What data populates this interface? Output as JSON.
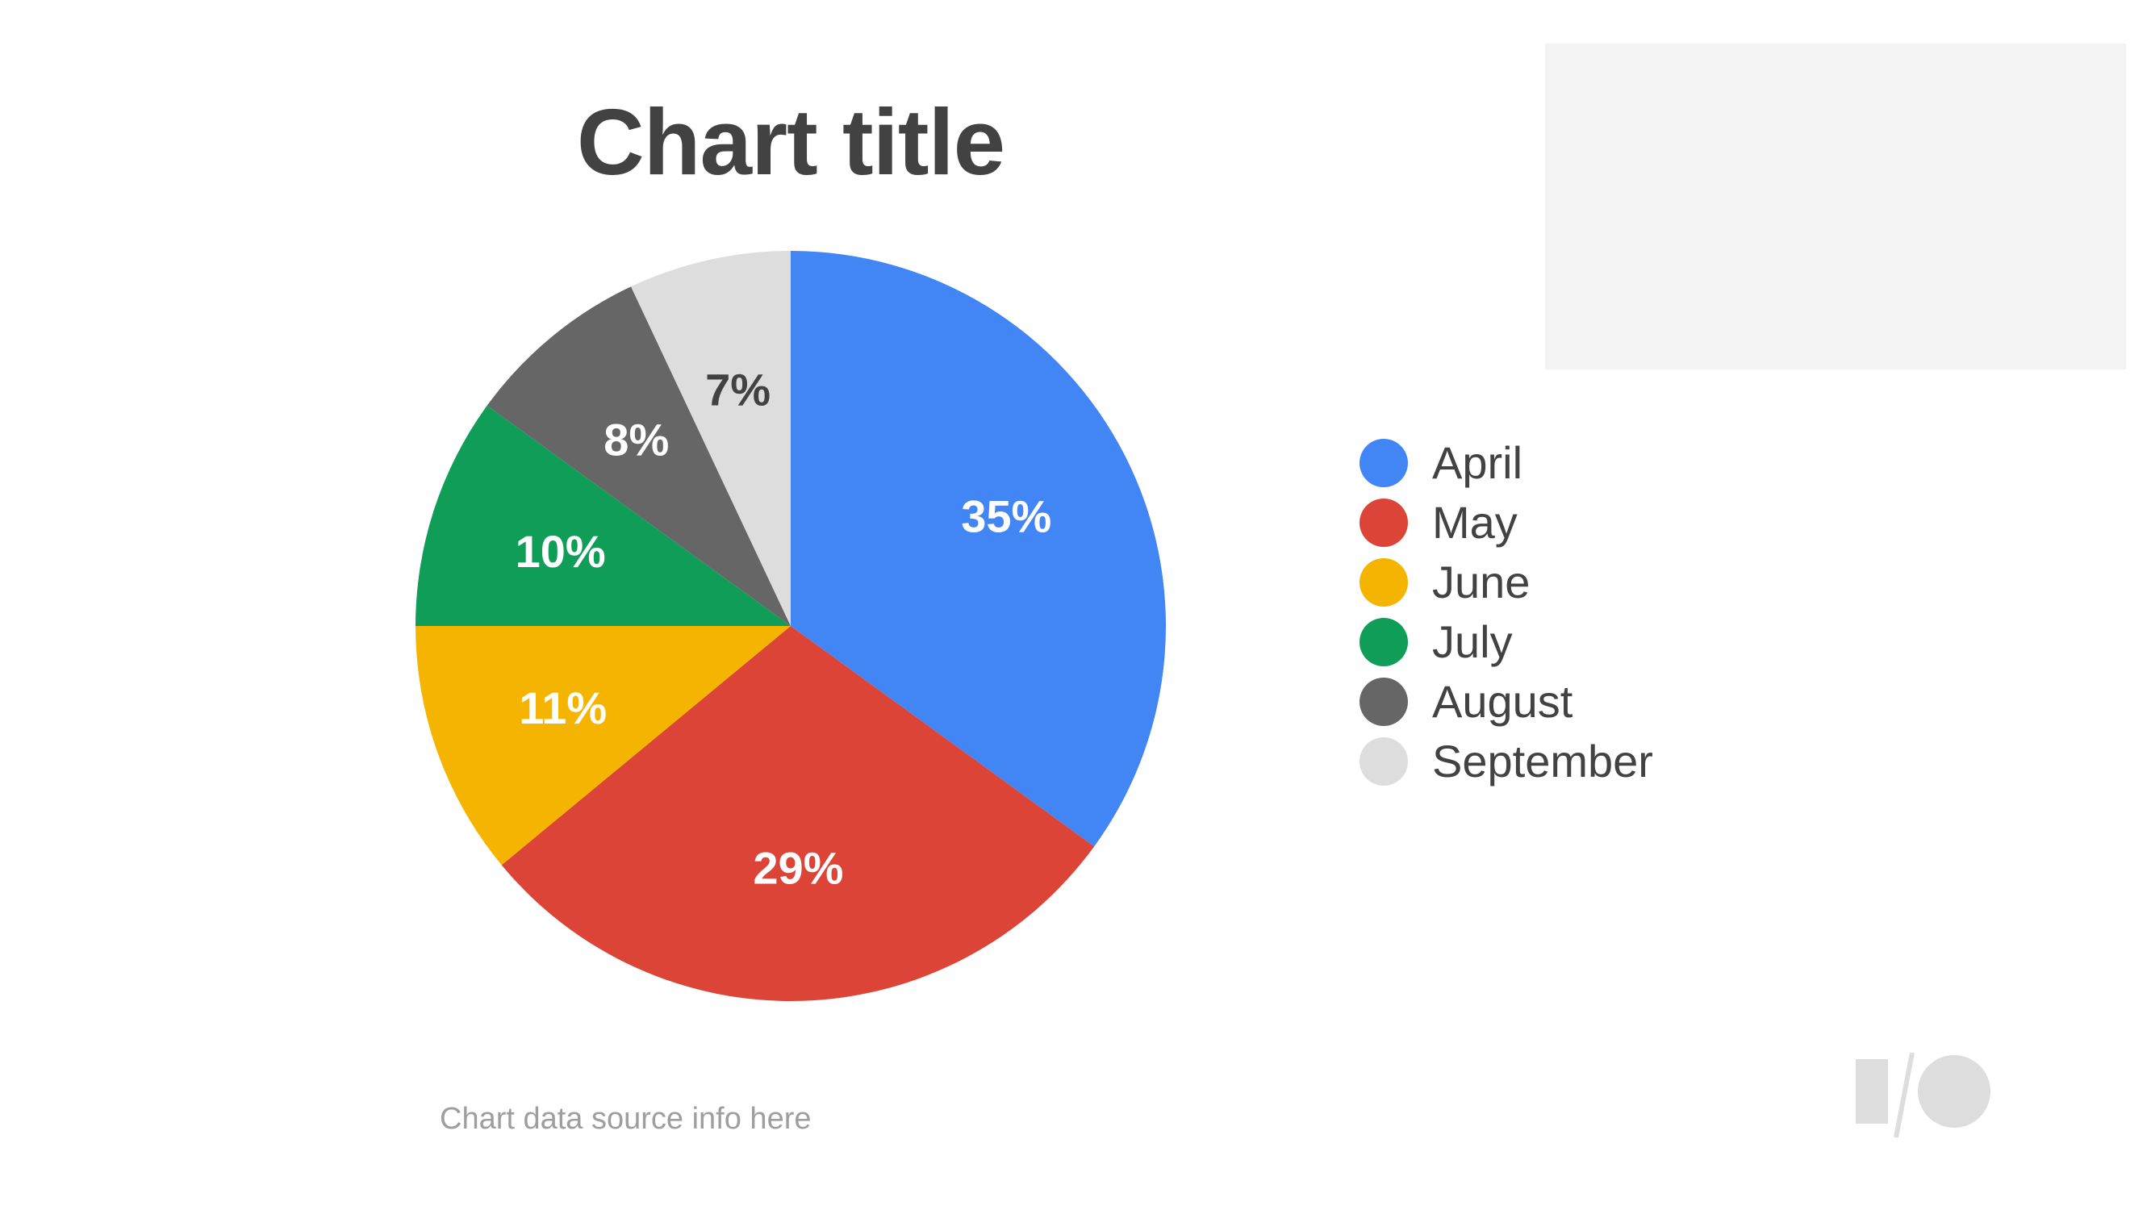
{
  "chart_data": {
    "type": "pie",
    "title": "Chart title",
    "categories": [
      "April",
      "May",
      "June",
      "July",
      "August",
      "September"
    ],
    "values": [
      35,
      29,
      11,
      10,
      8,
      7
    ],
    "value_labels": [
      "35%",
      "29%",
      "11%",
      "10%",
      "8%",
      "7%"
    ],
    "colors": [
      "#4285f4",
      "#db4437",
      "#f4b400",
      "#0f9d58",
      "#666666",
      "#dddddd"
    ],
    "label_colors": [
      "#ffffff",
      "#ffffff",
      "#ffffff",
      "#ffffff",
      "#ffffff",
      "#424242"
    ],
    "legend_position": "right",
    "start_angle_deg": 0,
    "direction": "clockwise"
  },
  "source_note": "Chart data source info here",
  "logo": {
    "icon": "google-io-logo-icon",
    "color": "#dddddd"
  },
  "placeholder_color": "#f3f3f3"
}
